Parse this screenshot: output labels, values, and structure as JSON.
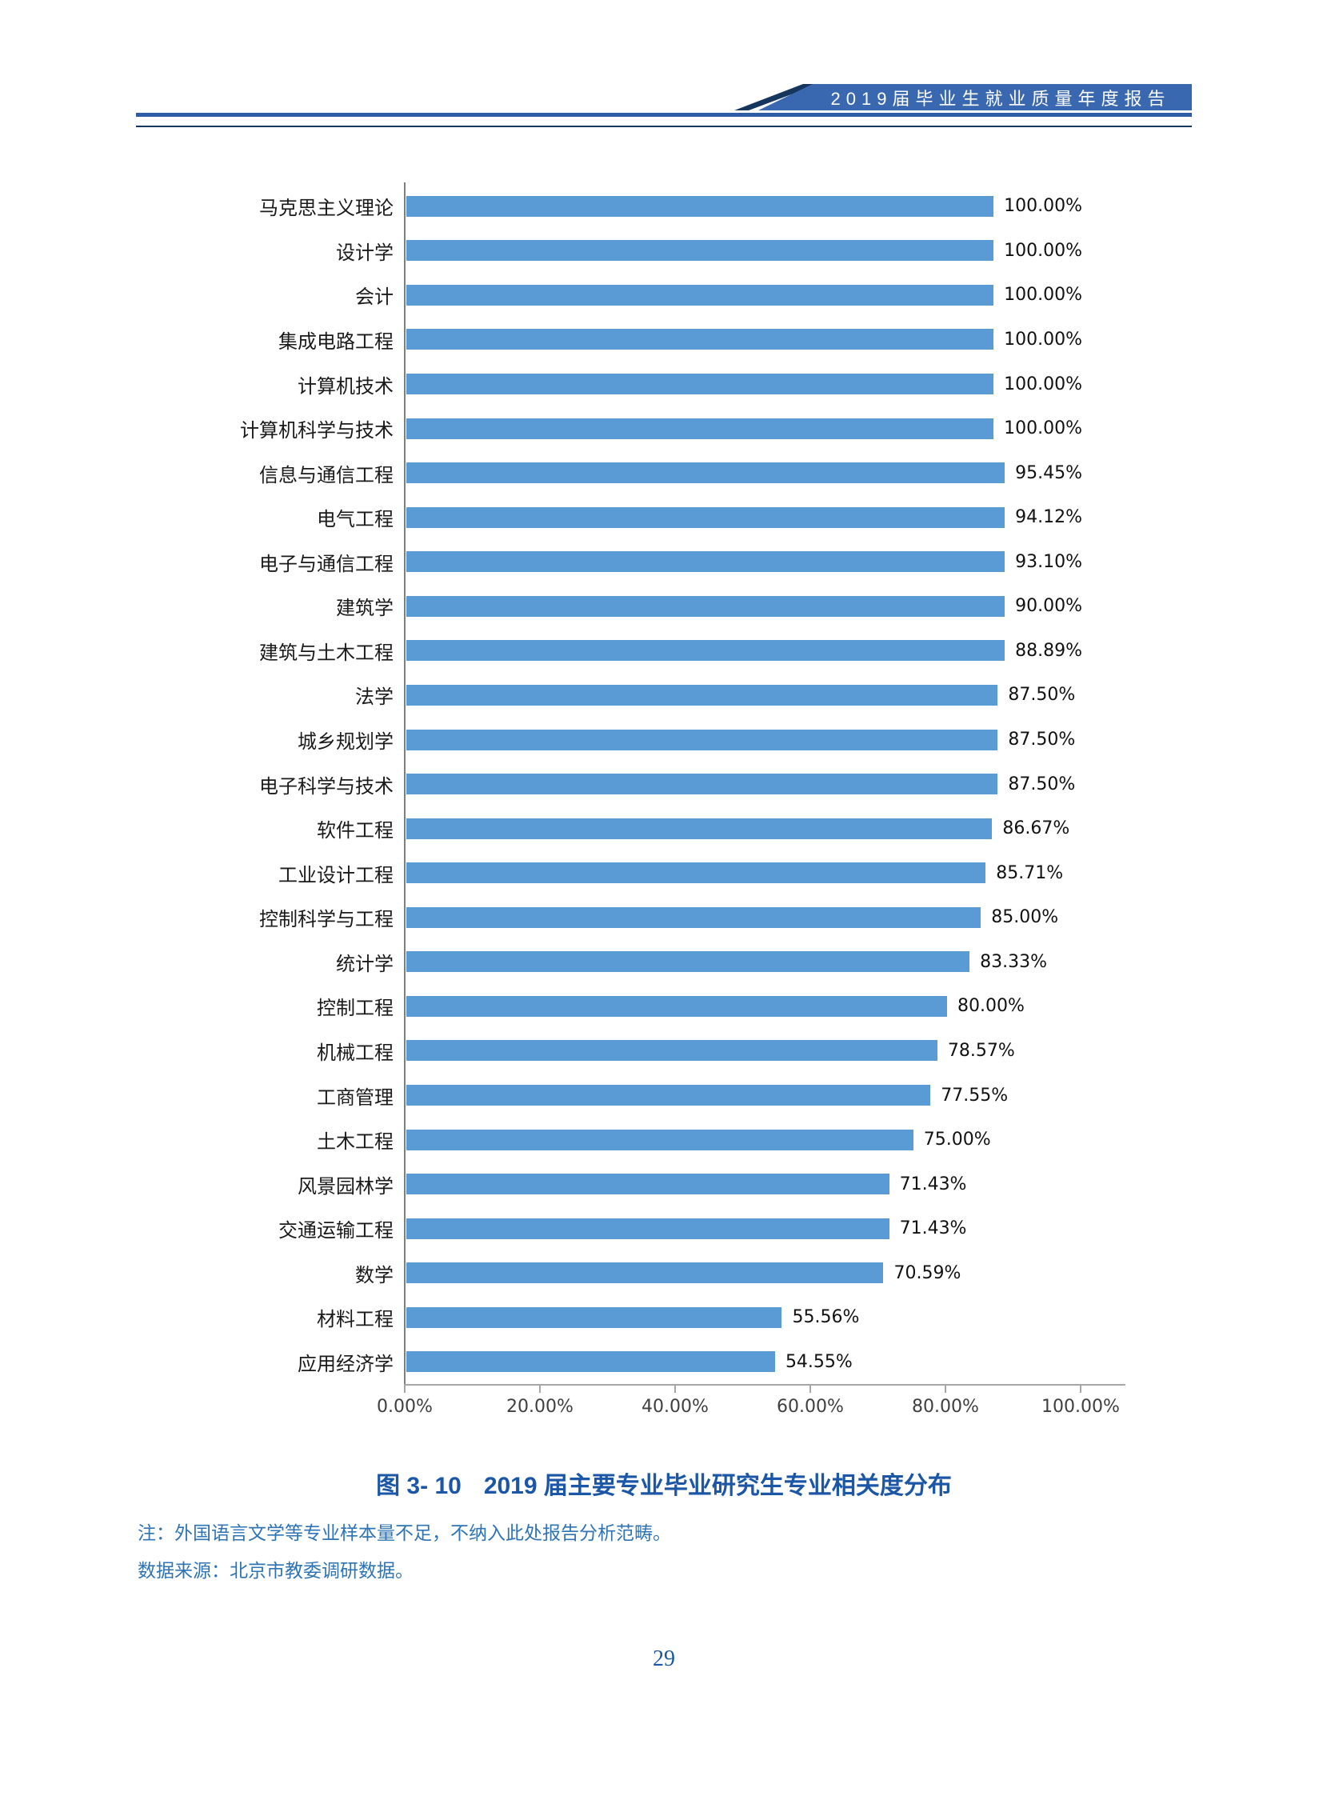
{
  "header": {
    "banner_title": "2019届毕业生就业质量年度报告"
  },
  "chart_data": {
    "type": "bar",
    "orientation": "horizontal",
    "title": "2019届主要专业毕业研究生专业相关度分布",
    "categories": [
      "马克思主义理论",
      "设计学",
      "会计",
      "集成电路工程",
      "计算机技术",
      "计算机科学与技术",
      "信息与通信工程",
      "电气工程",
      "电子与通信工程",
      "建筑学",
      "建筑与土木工程",
      "法学",
      "城乡规划学",
      "电子科学与技术",
      "软件工程",
      "工业设计工程",
      "控制科学与工程",
      "统计学",
      "控制工程",
      "机械工程",
      "工商管理",
      "土木工程",
      "风景园林学",
      "交通运输工程",
      "数学",
      "材料工程",
      "应用经济学"
    ],
    "values": [
      100,
      100,
      100,
      100,
      100,
      100,
      95.45,
      94.12,
      93.1,
      90.0,
      88.89,
      87.5,
      87.5,
      87.5,
      86.67,
      85.71,
      85.0,
      83.33,
      80.0,
      78.57,
      77.55,
      75.0,
      71.43,
      71.43,
      70.59,
      55.56,
      54.55
    ],
    "value_labels": [
      "100.00%",
      "100.00%",
      "100.00%",
      "100.00%",
      "100.00%",
      "100.00%",
      "95.45%",
      "94.12%",
      "93.10%",
      "90.00%",
      "88.89%",
      "87.50%",
      "87.50%",
      "87.50%",
      "86.67%",
      "85.71%",
      "85.00%",
      "83.33%",
      "80.00%",
      "78.57%",
      "77.55%",
      "75.00%",
      "71.43%",
      "71.43%",
      "70.59%",
      "55.56%",
      "54.55%"
    ],
    "x_ticks": [
      "0.00%",
      "20.00%",
      "40.00%",
      "60.00%",
      "80.00%",
      "100.00%"
    ],
    "xlim": [
      0,
      100
    ],
    "grid": false,
    "legend": "none",
    "bar_color": "#5B9BD5",
    "axis_color": "#A6A6A6"
  },
  "caption": {
    "figure_label": "图 3- 10",
    "title": "2019 届主要专业毕业研究生专业相关度分布"
  },
  "notes": {
    "line1": "注：外国语言文学等专业样本量不足，不纳入此处报告分析范畴。",
    "line2": "数据来源：北京市教委调研数据。"
  },
  "footer": {
    "page_number": "29"
  },
  "colors": {
    "banner": "#3A68B0",
    "rule_blue": "#2E5CA6",
    "rule_navy": "#17365D",
    "bar": "#5B9BD5",
    "axis": "#A6A6A6",
    "caption_blue": "#1B57A6",
    "note_blue": "#2E74B5"
  }
}
